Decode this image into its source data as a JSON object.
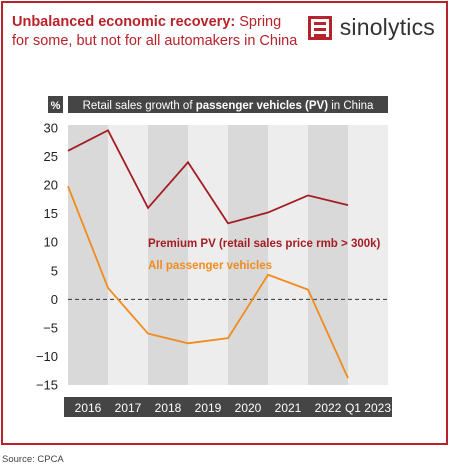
{
  "header": {
    "title_bold": "Unbalanced economic recovery:",
    "title_rest": " Spring for some, but not for all automakers in China"
  },
  "logo": {
    "text": "sinolytics",
    "icon": "sinolytics-logo-icon"
  },
  "source": "Source: CPCA",
  "colors": {
    "brand": "#b8222a",
    "premium_line": "#a51d24",
    "all_line": "#f08c1e",
    "band_dark": "#d9d9d9",
    "band_light": "#ededed",
    "title_bar": "#454545"
  },
  "chart_data": {
    "type": "line",
    "title_pre": "Retail sales growth of ",
    "title_bold": "passenger vehicles (PV)",
    "title_post": " in China",
    "ylabel": "%",
    "ylim": [
      -15,
      30
    ],
    "yticks": [
      30,
      25,
      20,
      15,
      10,
      5,
      0,
      -5,
      -10,
      -15
    ],
    "categories": [
      "2016",
      "2017",
      "2018",
      "2019",
      "2020",
      "2021",
      "2022",
      "Q1 2023"
    ],
    "series": [
      {
        "name": "Premium PV (retail sales price rmb > 300k)",
        "values": [
          26,
          29.6,
          16,
          24,
          13.3,
          15.2,
          18.2,
          16.5
        ]
      },
      {
        "name": "All passenger vehicles",
        "values": [
          19.8,
          2,
          -6,
          -7.7,
          -6.8,
          4.3,
          1.7,
          -13.8
        ]
      }
    ]
  }
}
